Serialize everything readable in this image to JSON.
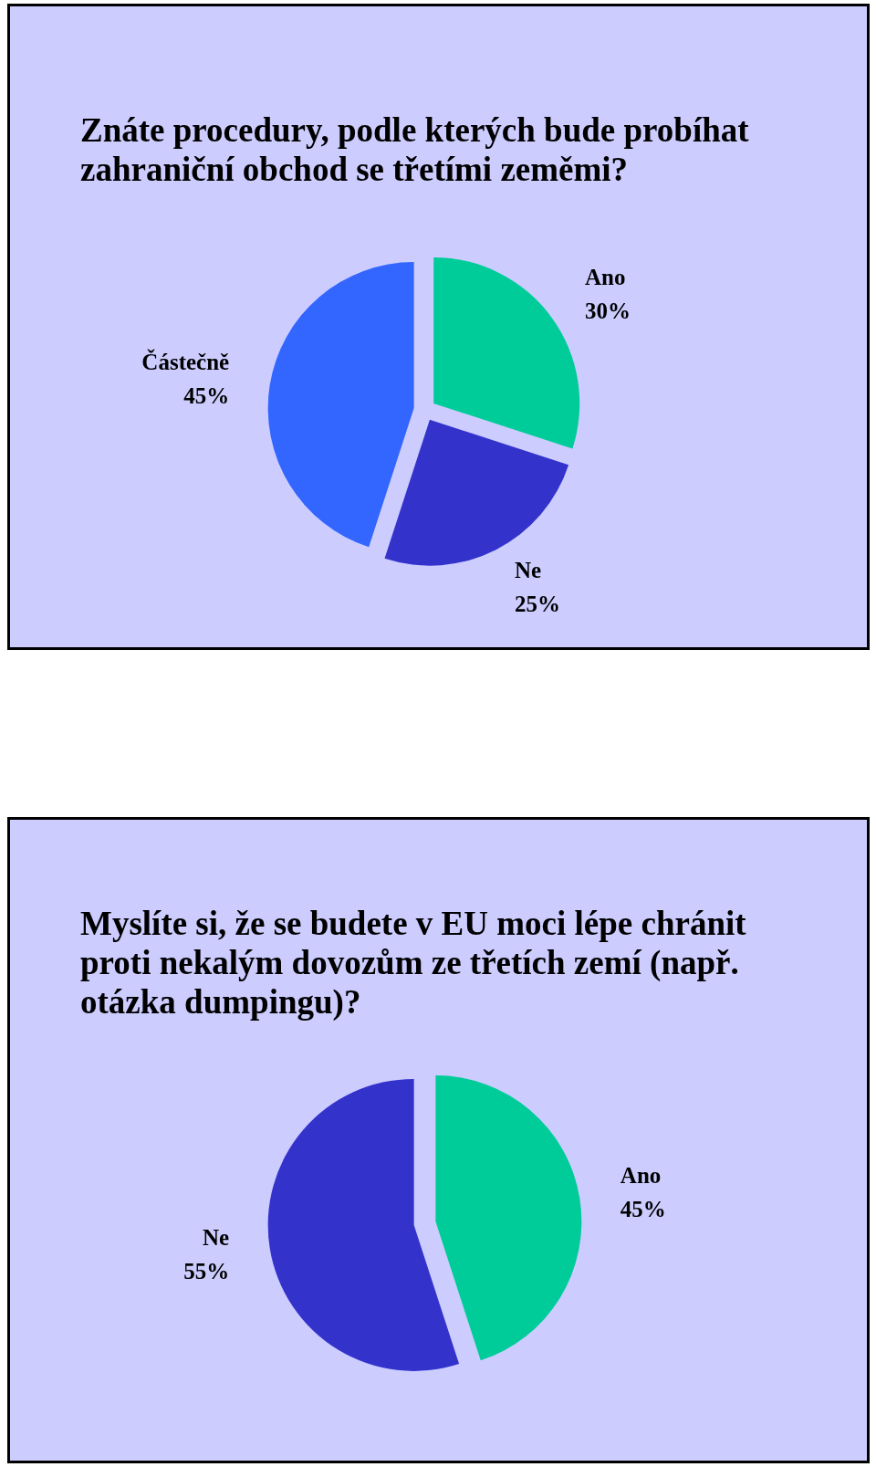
{
  "chart_data": [
    {
      "type": "pie",
      "title": "Znáte procedury, podle kterých bude probíhat zahraniční obchod se třetími zeměmi?",
      "categories": [
        "Ano",
        "Ne",
        "Částečně"
      ],
      "values": [
        30,
        25,
        45
      ],
      "colors": [
        "#00cc99",
        "#3333cc",
        "#3366ff"
      ],
      "value_labels": [
        "30%",
        "25%",
        "45%"
      ]
    },
    {
      "type": "pie",
      "title": "Myslíte si, že se budete v EU moci lépe chránit proti nekalým dovozům ze třetích zemí (např. otázka dumpingu)?",
      "categories": [
        "Ano",
        "Ne"
      ],
      "values": [
        45,
        55
      ],
      "colors": [
        "#00cc99",
        "#3333cc"
      ],
      "value_labels": [
        "45%",
        "55%"
      ]
    }
  ]
}
